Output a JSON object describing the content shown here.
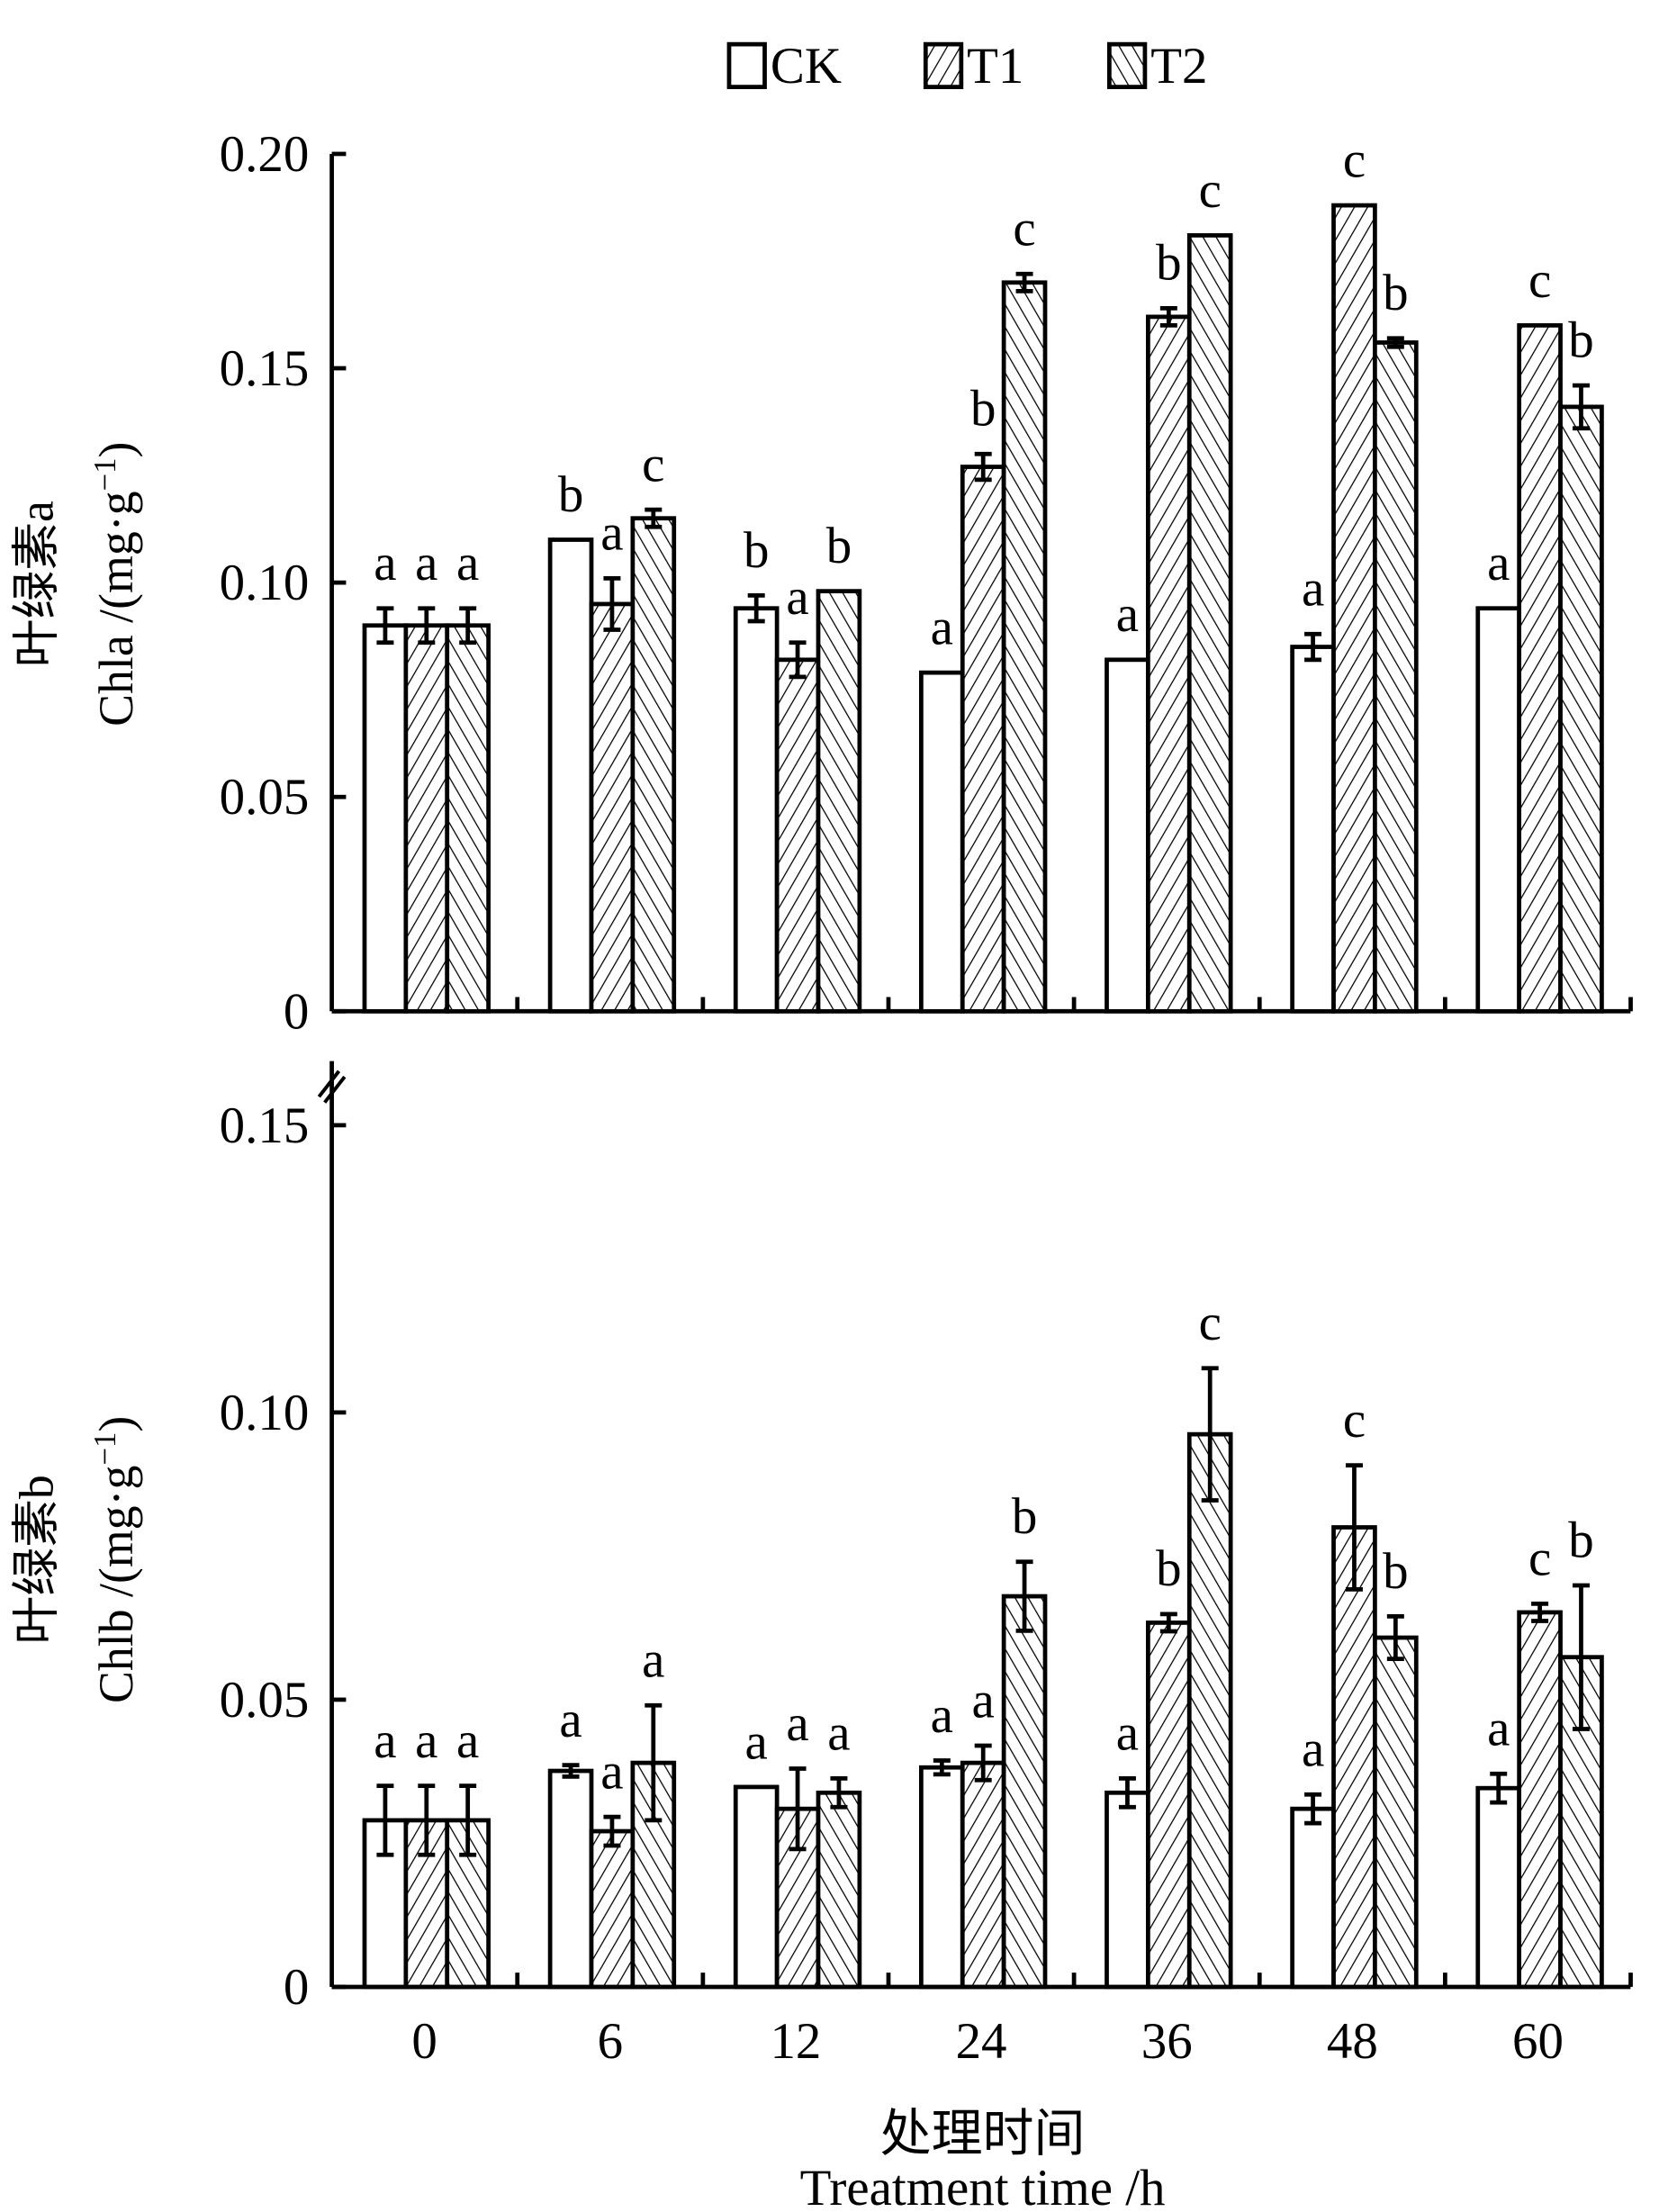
{
  "chart_data": [
    {
      "type": "bar",
      "panel": "top",
      "categories": [
        "0",
        "6",
        "12",
        "24",
        "36",
        "48",
        "60"
      ],
      "ylabel_cn": "叶绿素a",
      "ylabel_en": "Chla /(mg·g",
      "ylabel_sup": "−1",
      "ylabel_close": ")",
      "ylim": [
        0,
        0.2
      ],
      "yticks": [
        "0",
        "0.05",
        "0.10",
        "0.15",
        "0.20"
      ],
      "ytick_values": [
        0,
        0.05,
        0.1,
        0.15,
        0.2
      ],
      "series": [
        {
          "name": "CK",
          "values": [
            0.09,
            0.11,
            0.094,
            0.079,
            0.082,
            0.085,
            0.094
          ],
          "errors": [
            0.004,
            0,
            0.003,
            0,
            0,
            0.003,
            0
          ],
          "letters": [
            "a",
            "b",
            "b",
            "a",
            "a",
            "a",
            "a"
          ]
        },
        {
          "name": "T1",
          "values": [
            0.09,
            0.095,
            0.082,
            0.127,
            0.162,
            0.188,
            0.16
          ],
          "errors": [
            0.004,
            0.006,
            0.004,
            0.003,
            0.002,
            0,
            0
          ],
          "letters": [
            "a",
            "a",
            "a",
            "b",
            "b",
            "c",
            "c"
          ]
        },
        {
          "name": "T2",
          "values": [
            0.09,
            0.115,
            0.098,
            0.17,
            0.181,
            0.156,
            0.141
          ],
          "errors": [
            0.004,
            0.002,
            0,
            0.002,
            0,
            0.001,
            0.005
          ],
          "letters": [
            "a",
            "c",
            "b",
            "c",
            "c",
            "b",
            "b"
          ]
        }
      ]
    },
    {
      "type": "bar",
      "panel": "bottom",
      "categories": [
        "0",
        "6",
        "12",
        "24",
        "36",
        "48",
        "60"
      ],
      "ylabel_cn": "叶绿素b",
      "ylabel_en": "Chlb /(mg·g",
      "ylabel_sup": "−1",
      "ylabel_close": ")",
      "ylim": [
        0,
        0.15
      ],
      "yticks": [
        "0",
        "0.05",
        "0.10",
        "0.15"
      ],
      "ytick_values": [
        0,
        0.05,
        0.1,
        0.15
      ],
      "series": [
        {
          "name": "CK",
          "values": [
            0.029,
            0.0376,
            0.0348,
            0.0382,
            0.0338,
            0.031,
            0.0346
          ],
          "errors": [
            0.006,
            0.001,
            0,
            0.0012,
            0.0025,
            0.0025,
            0.0025
          ],
          "letters": [
            "a",
            "a",
            "a",
            "a",
            "a",
            "a",
            "a"
          ]
        },
        {
          "name": "T1",
          "values": [
            0.029,
            0.0271,
            0.031,
            0.039,
            0.0634,
            0.08,
            0.0652
          ],
          "errors": [
            0.006,
            0.0025,
            0.007,
            0.003,
            0.0015,
            0.0108,
            0.0015
          ],
          "letters": [
            "a",
            "a",
            "a",
            "a",
            "b",
            "c",
            "c"
          ]
        },
        {
          "name": "T2",
          "values": [
            0.029,
            0.039,
            0.0338,
            0.068,
            0.0962,
            0.0608,
            0.0574
          ],
          "errors": [
            0.006,
            0.01,
            0.0025,
            0.006,
            0.0115,
            0.0037,
            0.0125
          ],
          "letters": [
            "a",
            "a",
            "a",
            "b",
            "c",
            "b",
            "b"
          ]
        }
      ]
    }
  ],
  "legend": {
    "items": [
      "CK",
      "T1",
      "T2"
    ],
    "placement": "top-center"
  },
  "xlabel_cn": "处理时间",
  "xlabel_en": "Treatment time /h",
  "colors": {
    "ink": "#000000",
    "background": "#ffffff"
  }
}
